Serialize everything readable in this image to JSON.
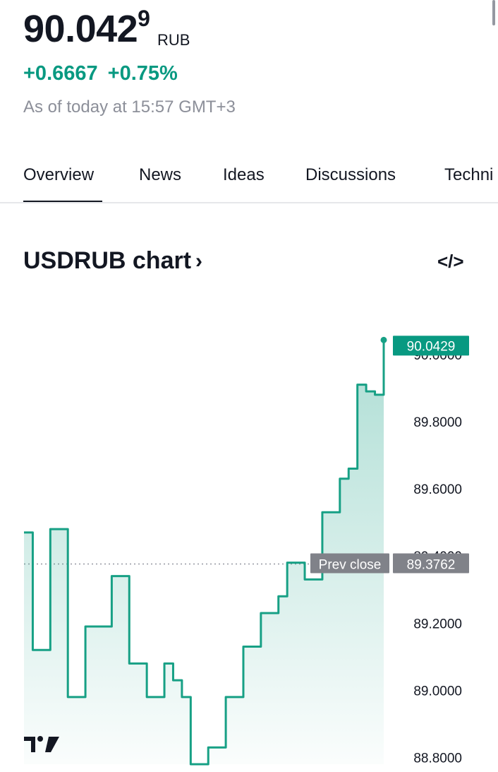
{
  "header": {
    "price_main": "90.042",
    "price_sup": "9",
    "currency": "RUB",
    "change_abs": "+0.6667",
    "change_pct": "+0.75%",
    "timestamp": "As of today at 15:57 GMT+3"
  },
  "tabs": [
    {
      "label": "Overview",
      "active": true
    },
    {
      "label": "News"
    },
    {
      "label": "Ideas"
    },
    {
      "label": "Discussions"
    },
    {
      "label": "Techni"
    }
  ],
  "chart_section": {
    "title": "USDRUB chart",
    "chevron": "›",
    "embed_icon": "code-embed-icon"
  },
  "colors": {
    "accent_green": "#089981",
    "line": "#17a085",
    "gray_label": "#7b7d85"
  },
  "chart_data": {
    "type": "area",
    "series": [
      {
        "values": [
          89.47,
          89.12,
          89.12,
          89.48,
          89.48,
          88.98,
          88.98,
          89.19,
          89.19,
          89.19,
          89.34,
          89.34,
          89.08,
          89.08,
          88.98,
          88.98,
          89.08,
          89.03,
          88.98,
          88.78,
          88.78,
          88.83,
          88.83,
          88.98,
          88.98,
          89.13,
          89.13,
          89.23,
          89.23,
          89.28,
          89.38,
          89.38,
          89.33,
          89.33,
          89.53,
          89.53,
          89.63,
          89.66,
          89.91,
          89.89,
          89.88,
          90.0429
        ]
      }
    ],
    "ylim": [
      88.78,
      90.05
    ],
    "y_ticks": [
      "90.0000",
      "89.8000",
      "89.6000",
      "89.4000",
      "89.2000",
      "89.0000",
      "88.8000"
    ],
    "last_value": 90.0429,
    "last_label": "90.0429",
    "prev_close": 89.3762,
    "prev_close_text": "Prev close",
    "prev_close_label": "89.3762"
  }
}
